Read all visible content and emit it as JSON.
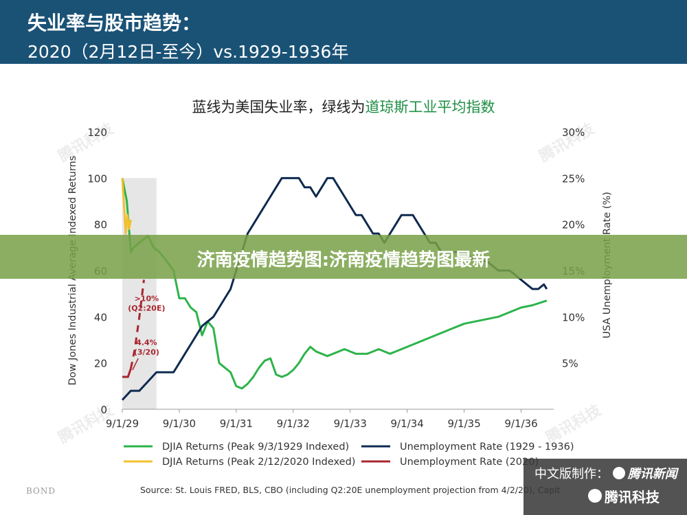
{
  "header": {
    "title": "失业率与股市趋势：",
    "subtitle": "2020（2月12日-至今）vs.1929-1936年"
  },
  "chart_title": {
    "prefix": "蓝线为美国失业率，绿线为",
    "highlight": "道琼斯工业平均指数"
  },
  "banner": {
    "text": "济南疫情趋势图:济南疫情趋势图最新"
  },
  "watermark": {
    "text": "腾讯科技"
  },
  "colors": {
    "djia_1929": "#2db34a",
    "djia_2020": "#f2c12e",
    "unemp_1929": "#0f2a4f",
    "unemp_2020": "#a8262f",
    "header_bg": "#1a5276",
    "shade": "#e6e6e6"
  },
  "chart_data": {
    "type": "line",
    "title": "蓝线为美国失业率，绿线为道琼斯工业平均指数",
    "ylabel_left": "Dow Jones Industrial Average Indexed Returns",
    "ylabel_right": "USA Unemployment Rate (%)",
    "y_left_range": [
      0,
      120
    ],
    "y_left_ticks": [
      "0",
      "20",
      "40",
      "60",
      "80",
      "100",
      "120"
    ],
    "y_right_range": [
      0,
      30
    ],
    "y_right_ticks": [
      "",
      "5%",
      "10%",
      "15%",
      "20%",
      "25%",
      "30%"
    ],
    "x_range": [
      0,
      7.5
    ],
    "x_ticks": [
      "9/1/29",
      "9/1/30",
      "9/1/31",
      "9/1/32",
      "9/1/33",
      "9/1/34",
      "9/1/35",
      "9/1/36"
    ],
    "shaded_period": [
      0,
      0.6
    ],
    "series": [
      {
        "name": "DJIA Returns (Peak 9/3/1929 Indexed)",
        "axis": "left",
        "x": [
          0,
          0.08,
          0.15,
          0.2,
          0.3,
          0.45,
          0.55,
          0.65,
          0.75,
          0.9,
          1.0,
          1.1,
          1.2,
          1.3,
          1.4,
          1.5,
          1.6,
          1.7,
          1.8,
          1.9,
          2.0,
          2.1,
          2.2,
          2.3,
          2.4,
          2.5,
          2.6,
          2.7,
          2.8,
          2.9,
          3.0,
          3.1,
          3.2,
          3.3,
          3.4,
          3.5,
          3.6,
          3.7,
          3.8,
          3.9,
          4.0,
          4.1,
          4.2,
          4.3,
          4.4,
          4.5,
          4.6,
          4.7,
          4.8,
          4.9,
          5.0,
          5.1,
          5.2,
          5.3,
          5.4,
          5.5,
          5.6,
          5.7,
          5.8,
          5.9,
          6.0,
          6.2,
          6.4,
          6.6,
          6.8,
          7.0,
          7.2,
          7.45
        ],
        "values": [
          100,
          90,
          68,
          70,
          72,
          75,
          70,
          68,
          65,
          60,
          48,
          48,
          44,
          42,
          32,
          38,
          35,
          20,
          18,
          16,
          10,
          9,
          11,
          14,
          18,
          21,
          22,
          15,
          14,
          15,
          17,
          20,
          24,
          27,
          25,
          24,
          23,
          24,
          25,
          26,
          25,
          24,
          24,
          24,
          25,
          26,
          25,
          24,
          25,
          26,
          27,
          28,
          29,
          30,
          31,
          32,
          33,
          34,
          35,
          36,
          37,
          38,
          39,
          40,
          42,
          44,
          45,
          47
        ]
      },
      {
        "name": "DJIA Returns (Peak 2/12/2020 Indexed)",
        "axis": "left",
        "x": [
          0,
          0.03,
          0.06,
          0.09,
          0.12,
          0.15
        ],
        "values": [
          100,
          88,
          76,
          84,
          78,
          82
        ]
      },
      {
        "name": "Unemployment Rate (1929 - 1936)",
        "axis": "right",
        "x": [
          0,
          0.15,
          0.3,
          0.45,
          0.6,
          0.75,
          0.9,
          1.0,
          1.1,
          1.2,
          1.3,
          1.4,
          1.5,
          1.6,
          1.7,
          1.8,
          1.9,
          2.0,
          2.1,
          2.2,
          2.3,
          2.4,
          2.5,
          2.6,
          2.7,
          2.8,
          2.9,
          3.0,
          3.1,
          3.2,
          3.3,
          3.4,
          3.5,
          3.6,
          3.7,
          3.8,
          3.9,
          4.0,
          4.1,
          4.2,
          4.3,
          4.4,
          4.5,
          4.6,
          4.7,
          4.8,
          4.9,
          5.0,
          5.1,
          5.2,
          5.3,
          5.4,
          5.5,
          5.6,
          5.7,
          5.8,
          5.9,
          6.0,
          6.2,
          6.4,
          6.6,
          6.8,
          7.0,
          7.2,
          7.3,
          7.4,
          7.45
        ],
        "values": [
          1,
          2,
          2,
          3,
          4,
          4,
          4,
          5,
          6,
          7,
          8,
          9,
          9.5,
          10,
          11,
          12,
          13,
          15,
          17,
          19,
          20,
          21,
          22,
          23,
          24,
          25,
          25,
          25,
          25,
          24,
          24,
          23,
          24,
          25,
          25,
          24,
          23,
          22,
          21,
          21,
          20,
          19,
          19,
          18,
          19,
          20,
          21,
          21,
          21,
          20,
          19,
          18,
          18,
          17,
          17,
          17,
          17,
          17,
          16,
          16,
          15,
          15,
          14,
          13,
          13,
          13.5,
          13
        ]
      },
      {
        "name": "Unemployment Rate (2020)",
        "axis": "right",
        "x": [
          0,
          0.1,
          0.15,
          0.22,
          0.3,
          0.38
        ],
        "values": [
          3.5,
          3.5,
          4.4,
          6.5,
          10,
          14
        ],
        "dashed_from": 2
      }
    ],
    "annotations": [
      {
        "text": ">10%",
        "text2": "(Q2:20E)",
        "x": 0.33,
        "y_left": 45
      },
      {
        "text": "4.4%",
        "text2": "(3/20)",
        "x": 0.33,
        "y_left": 26
      }
    ],
    "legend": [
      {
        "label": "DJIA Returns (Peak 9/3/1929 Indexed)",
        "series": 0
      },
      {
        "label": "Unemployment Rate (1929 - 1936)",
        "series": 2
      },
      {
        "label": "DJIA Returns (Peak 2/12/2020 Indexed)",
        "series": 1
      },
      {
        "label": "Unemployment Rate (2020)",
        "series": 3
      }
    ],
    "legend_position": "bottom"
  },
  "footer": {
    "bond": "BOND",
    "source": "Source: St. Louis FRED, BLS, CBO (including Q2:20E unemployment projection from 4/2/20), Capit"
  },
  "credit": {
    "label": "中文版制作：",
    "brand1": "腾讯新闻",
    "brand2": "腾讯科技"
  }
}
